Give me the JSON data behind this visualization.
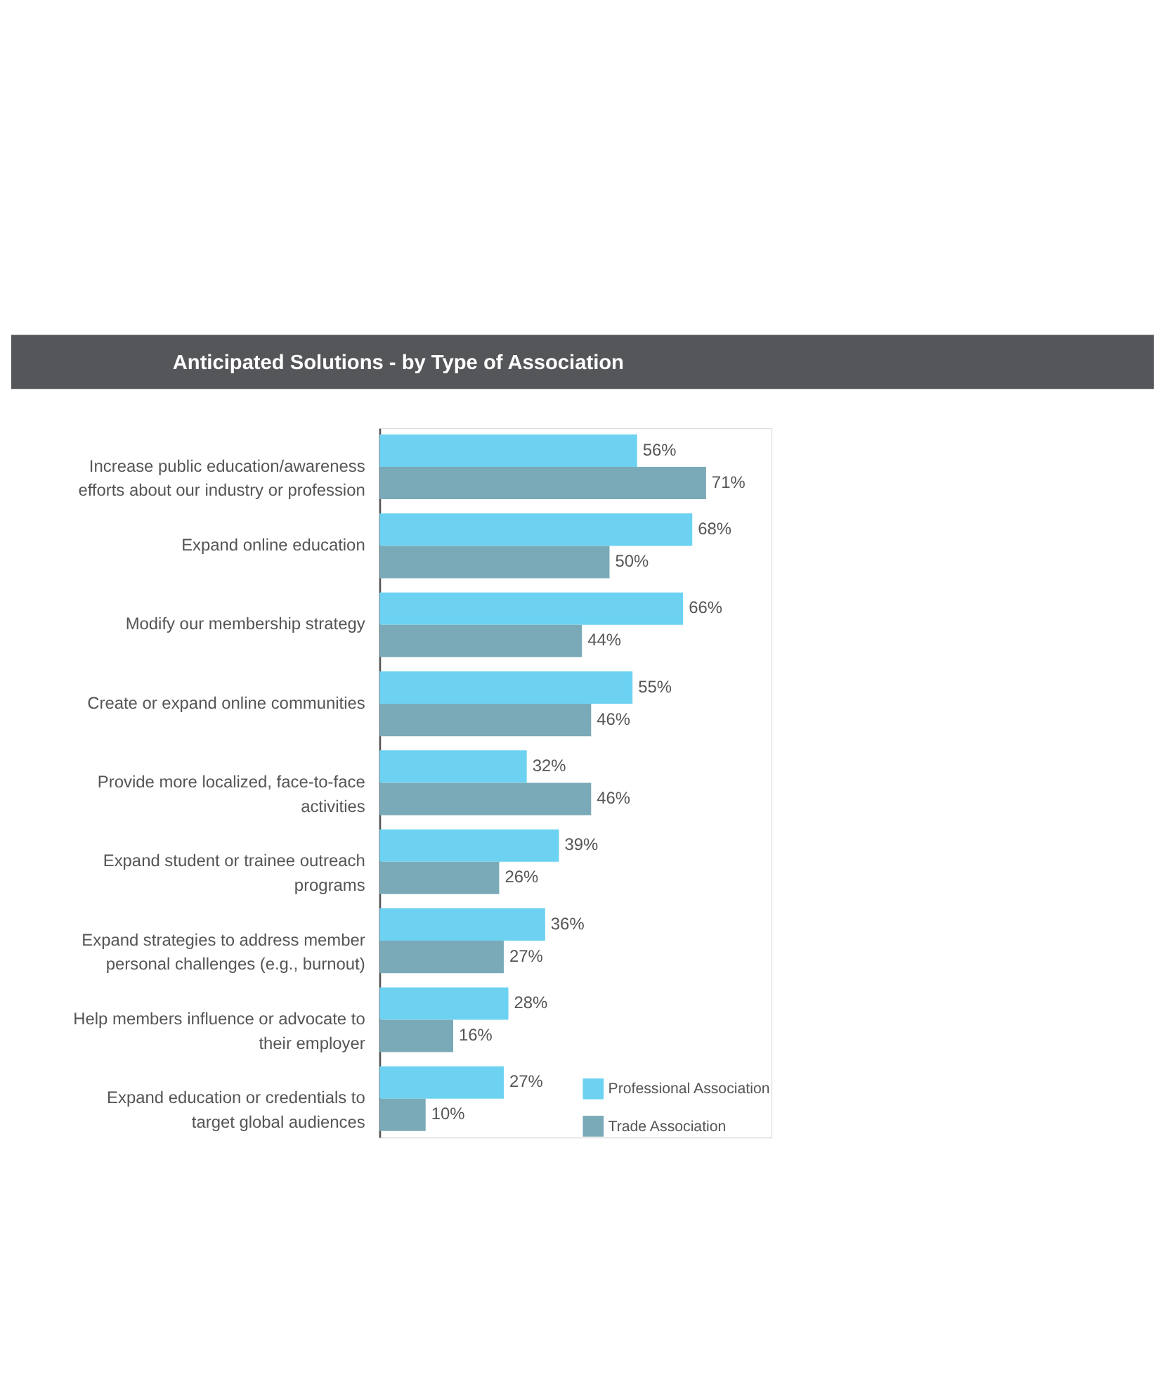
{
  "chart_data": {
    "type": "bar",
    "orientation": "horizontal",
    "title": "Anticipated Solutions - by Type of Association",
    "categories": [
      "Increase public education/awareness efforts about our industry or profession",
      "Expand online education",
      "Modify our membership strategy",
      "Create or expand online communities",
      "Provide more localized, face-to-face activities",
      "Expand student or trainee outreach programs",
      "Expand strategies to address member personal challenges (e.g., burnout)",
      "Help members influence or advocate to their employer",
      "Expand education or credentials to target global audiences"
    ],
    "series": [
      {
        "name": "Professional Association",
        "color": "#6dd2f2",
        "values": [
          56,
          68,
          66,
          55,
          32,
          39,
          36,
          28,
          27
        ],
        "value_labels": [
          "56%",
          "68%",
          "66%",
          "55%",
          "32%",
          "39%",
          "36%",
          "28%",
          "27%"
        ]
      },
      {
        "name": "Trade Association",
        "color": "#7aaab8",
        "values": [
          71,
          50,
          44,
          46,
          46,
          26,
          27,
          16,
          10
        ],
        "value_labels": [
          "71%",
          "50%",
          "44%",
          "46%",
          "46%",
          "26%",
          "27%",
          "16%",
          "10%"
        ]
      }
    ],
    "legend": "bottom right",
    "grid": false
  }
}
